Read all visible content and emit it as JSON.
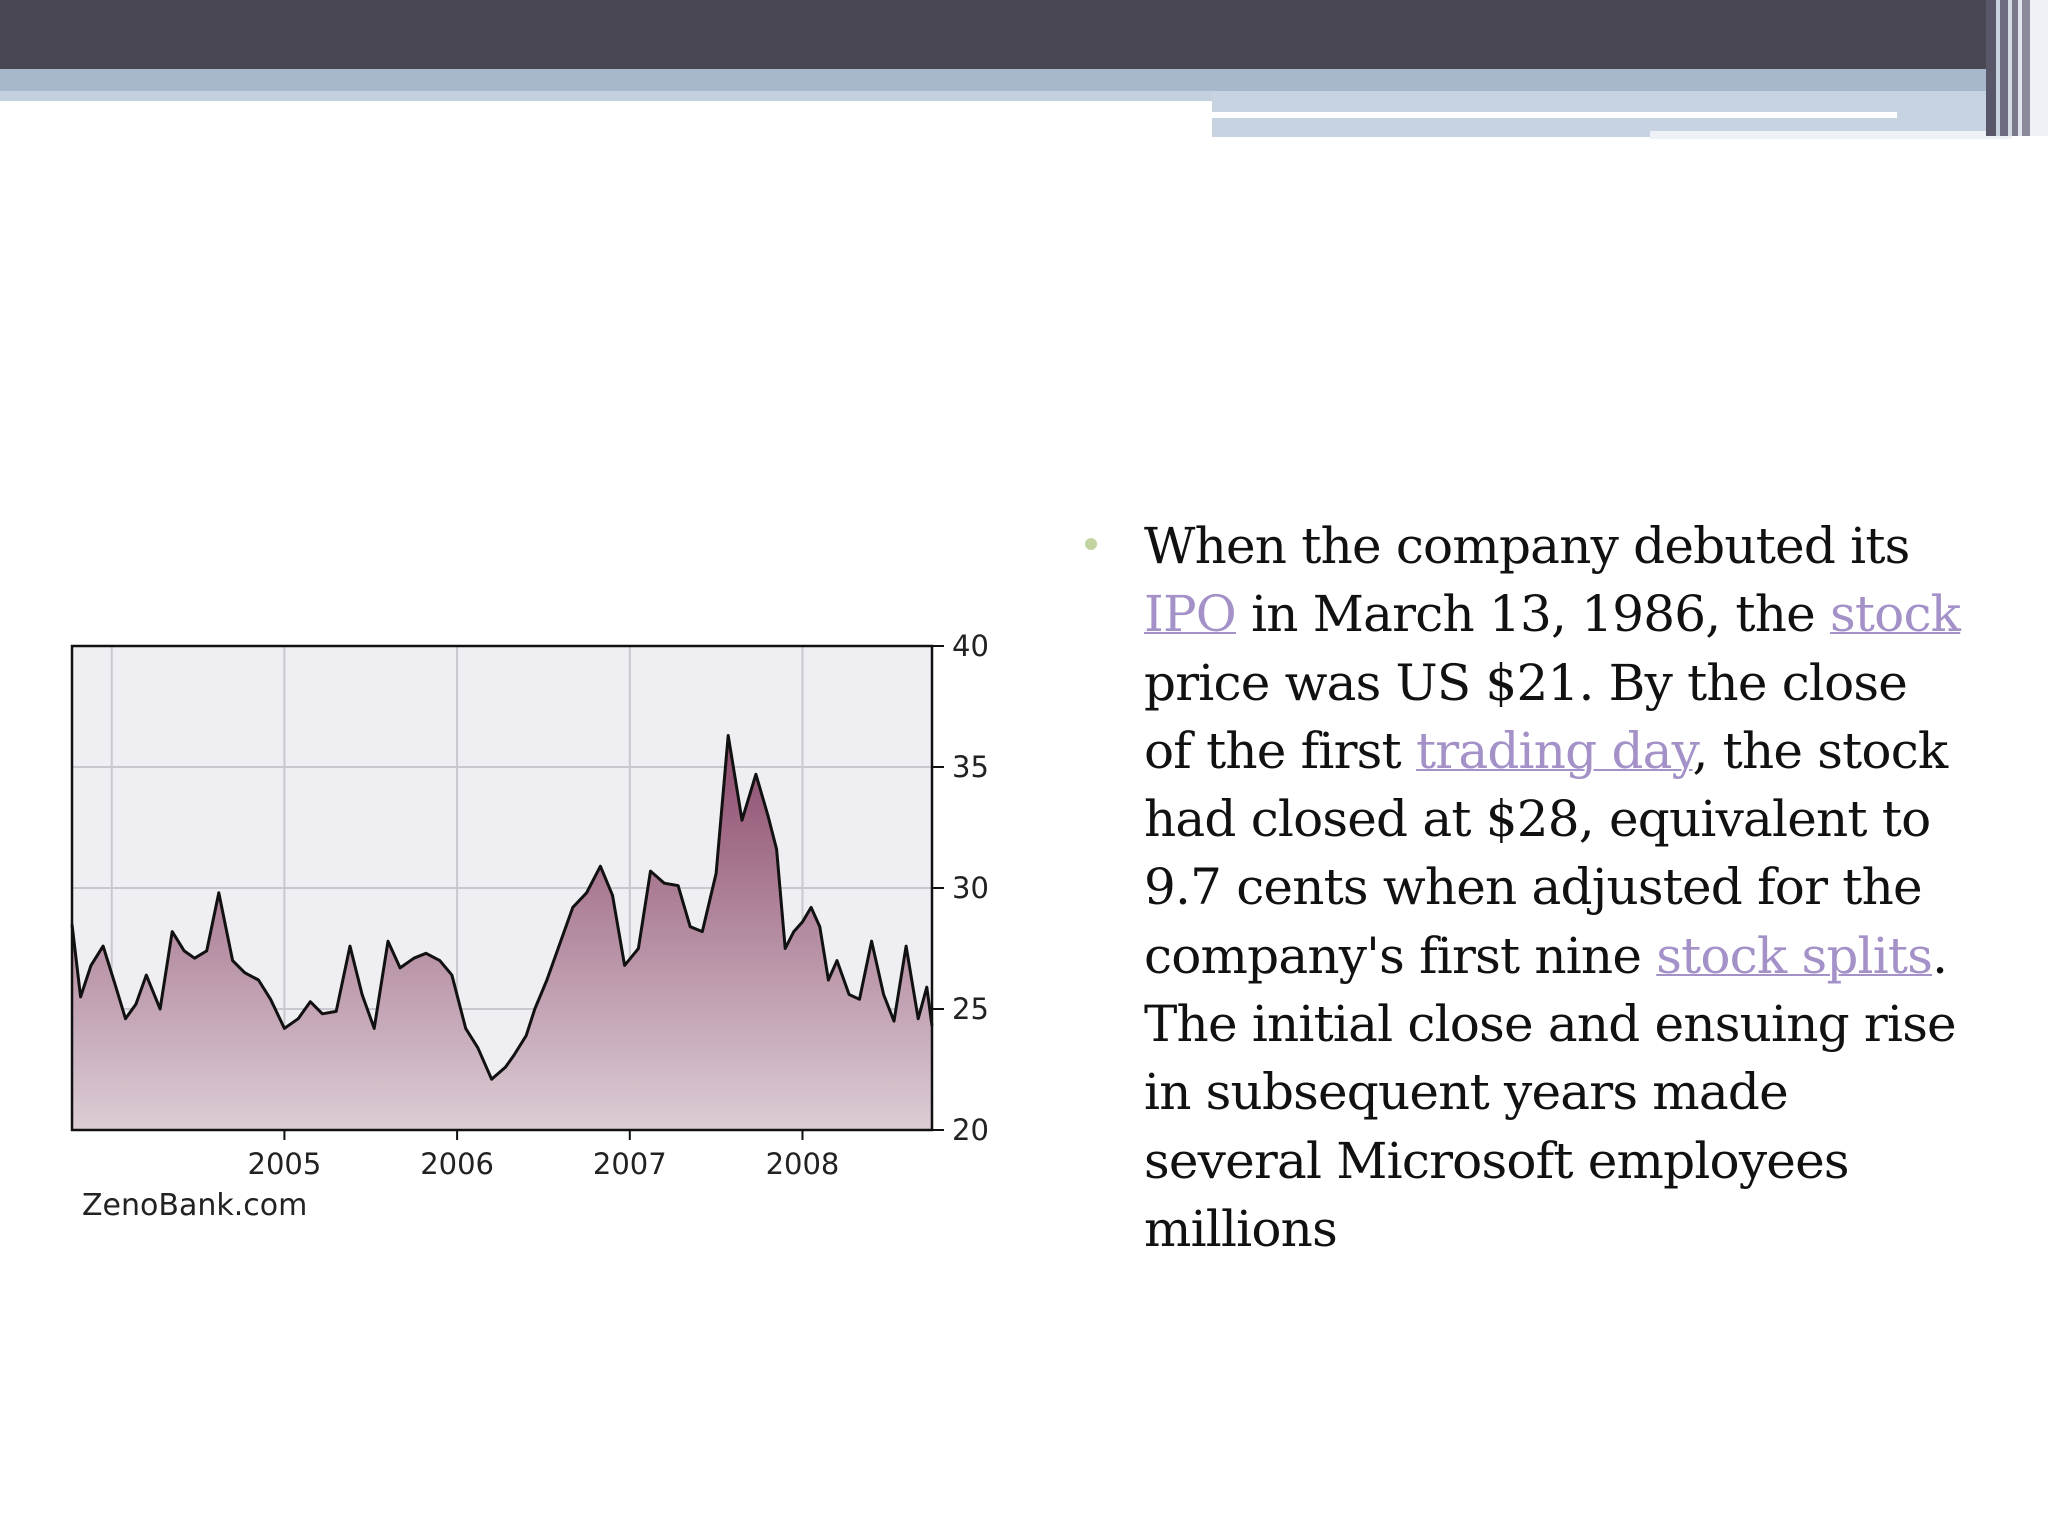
{
  "slide": {
    "bullet_text": [
      {
        "type": "text",
        "value": "When the company debuted its "
      },
      {
        "type": "link",
        "value": "IPO"
      },
      {
        "type": "text",
        "value": " in March 13, 1986, the "
      },
      {
        "type": "link",
        "value": "stock"
      },
      {
        "type": "text",
        "value": " price was US $21. By the close of the first "
      },
      {
        "type": "link",
        "value": "trading day"
      },
      {
        "type": "text",
        "value": ", the stock had closed at $28, equivalent to 9.7 cents when adjusted for the company's first nine "
      },
      {
        "type": "link",
        "value": "stock splits"
      },
      {
        "type": "text",
        "value": ". The initial close and ensuing rise in subsequent years made several Microsoft employees millions"
      }
    ],
    "colors": {
      "link": "#a391c8",
      "bullet": "#c2d4a0",
      "header": "#4a4755",
      "chart_fill_top": "#8c4a6b",
      "chart_fill_bottom": "#dccdd6",
      "chart_bg": "#efeef2"
    }
  },
  "chart_data": {
    "type": "area",
    "source_label": "ZenoBank.com",
    "x_tick_labels": [
      "2005",
      "2006",
      "2007",
      "2008"
    ],
    "x_tick_values": [
      2005.0,
      2006.0,
      2007.0,
      2008.0
    ],
    "xlim": [
      2003.77,
      2008.75
    ],
    "y_tick_labels": [
      "40",
      "35",
      "30",
      "25",
      "20"
    ],
    "y_tick_values": [
      40,
      35,
      30,
      25,
      20
    ],
    "ylim": [
      20,
      40
    ],
    "y_axis_side": "right",
    "grid": true,
    "series": [
      {
        "x": [
          2003.77,
          2003.82,
          2003.88,
          2003.95,
          2004.02,
          2004.08,
          2004.14,
          2004.2,
          2004.28,
          2004.35,
          2004.42,
          2004.48,
          2004.55,
          2004.62,
          2004.7,
          2004.77,
          2004.85,
          2004.92,
          2005.0,
          2005.08,
          2005.15,
          2005.22,
          2005.3,
          2005.38,
          2005.45,
          2005.52,
          2005.6,
          2005.67,
          2005.75,
          2005.82,
          2005.9,
          2005.97,
          2006.05,
          2006.12,
          2006.2,
          2006.28,
          2006.33,
          2006.4,
          2006.45,
          2006.52,
          2006.6,
          2006.67,
          2006.75,
          2006.83,
          2006.9,
          2006.97,
          2007.05,
          2007.12,
          2007.2,
          2007.28,
          2007.35,
          2007.42,
          2007.5,
          2007.57,
          2007.65,
          2007.73,
          2007.8,
          2007.85,
          2007.9,
          2007.95,
          2008.0,
          2008.05,
          2008.1,
          2008.15,
          2008.2,
          2008.27,
          2008.33,
          2008.4,
          2008.47,
          2008.53,
          2008.6,
          2008.67,
          2008.72,
          2008.75
        ],
        "values": [
          28.5,
          25.5,
          26.8,
          27.6,
          26.0,
          24.6,
          25.2,
          26.4,
          25.0,
          28.2,
          27.4,
          27.1,
          27.4,
          29.8,
          27.0,
          26.5,
          26.2,
          25.4,
          24.2,
          24.6,
          25.3,
          24.8,
          24.9,
          27.6,
          25.6,
          24.2,
          27.8,
          26.7,
          27.1,
          27.3,
          27.0,
          26.4,
          24.2,
          23.4,
          22.1,
          22.6,
          23.1,
          23.9,
          25.0,
          26.2,
          27.8,
          29.2,
          29.8,
          30.9,
          29.7,
          26.8,
          27.5,
          30.7,
          30.2,
          30.1,
          28.4,
          28.2,
          30.6,
          36.3,
          32.8,
          34.7,
          33.0,
          31.6,
          27.5,
          28.2,
          28.6,
          29.2,
          28.4,
          26.2,
          27.0,
          25.6,
          25.4,
          27.8,
          25.6,
          24.5,
          27.6,
          24.6,
          25.9,
          24.3
        ]
      }
    ]
  }
}
